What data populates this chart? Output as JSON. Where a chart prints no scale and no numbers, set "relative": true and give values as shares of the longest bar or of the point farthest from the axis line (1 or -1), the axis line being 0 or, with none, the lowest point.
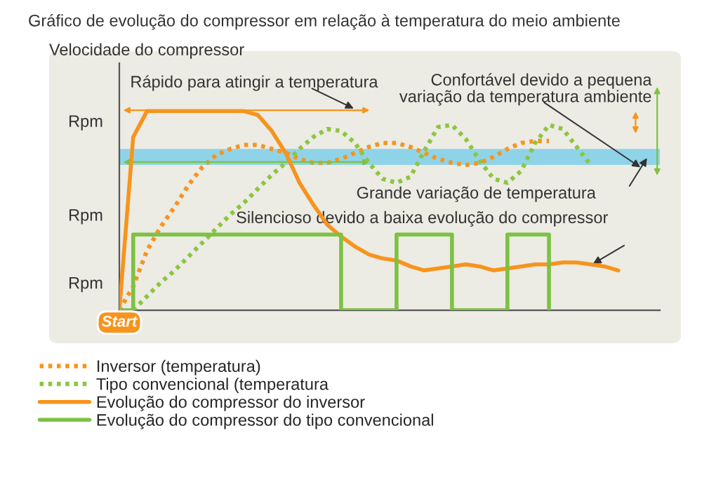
{
  "chart_data": {
    "type": "line",
    "relative": true,
    "title": "Gráfico de evolução do compressor em relação à temperatura do meio ambiente",
    "categories": [
      null,
      null,
      null,
      null,
      null,
      null,
      null,
      null,
      null,
      null,
      null,
      null,
      null,
      null,
      null,
      null,
      null,
      null,
      null,
      null,
      null,
      null,
      null,
      null,
      null,
      null,
      null,
      null,
      null,
      null,
      null,
      null,
      null,
      null,
      null,
      null,
      null,
      null,
      null,
      null
    ],
    "series": [
      {
        "name": "Inversor (temperatura)",
        "color": "#f7941d",
        "line_style": "dotted",
        "values": [
          0,
          0.12,
          0.3,
          0.42,
          0.52,
          0.63,
          0.72,
          0.78,
          0.81,
          0.83,
          0.83,
          0.81,
          0.79,
          0.76,
          0.74,
          0.74,
          0.76,
          0.79,
          0.82,
          0.84,
          0.84,
          0.82,
          0.79,
          0.76,
          0.74,
          0.73,
          0.74,
          0.77,
          0.81,
          0.84,
          0.85,
          0.85,
          null,
          null,
          null,
          null,
          null,
          null,
          null,
          null
        ]
      },
      {
        "name": "Tipo convencional (temperatura",
        "color": "#8cc63f",
        "line_style": "dotted",
        "values": [
          null,
          0,
          0.07,
          0.14,
          0.2,
          0.27,
          0.34,
          0.41,
          0.48,
          0.54,
          0.61,
          0.68,
          0.74,
          0.81,
          0.87,
          0.91,
          0.9,
          0.84,
          0.74,
          0.66,
          0.64,
          0.67,
          0.8,
          0.92,
          0.93,
          0.86,
          0.75,
          0.66,
          0.64,
          0.7,
          0.84,
          0.93,
          0.91,
          0.82,
          0.73,
          null,
          null,
          null,
          null,
          null
        ]
      },
      {
        "name": "Evolução do compressor do inversor",
        "color": "#f7941d",
        "line_style": "solid",
        "values": [
          0,
          0.87,
          1.0,
          1.0,
          1.0,
          1.0,
          1.0,
          1.0,
          1.0,
          1.0,
          0.98,
          0.9,
          0.79,
          0.64,
          0.53,
          0.43,
          0.37,
          0.32,
          0.28,
          0.26,
          0.25,
          0.22,
          0.2,
          0.21,
          0.22,
          0.23,
          0.22,
          0.2,
          0.21,
          0.22,
          0.23,
          0.23,
          0.24,
          0.24,
          0.23,
          0.22,
          0.2,
          null,
          null,
          null
        ]
      },
      {
        "name": "Evolução do compressor do tipo convencional",
        "color": "#7dc242",
        "type": "step",
        "line_style": "solid",
        "values": [
          0,
          0.38,
          0.38,
          0.38,
          0.38,
          0.38,
          0.38,
          0.38,
          0.38,
          0.38,
          0.38,
          0.38,
          0.38,
          0.38,
          0.38,
          0.38,
          0,
          0,
          0,
          0,
          0.38,
          0.38,
          0.38,
          0.38,
          0,
          0,
          0,
          0,
          0.38,
          0.38,
          0.38,
          0,
          null,
          null,
          null,
          null,
          null,
          null,
          null,
          null
        ]
      }
    ],
    "bands": [
      {
        "axis": "y",
        "from": 0.73,
        "to": 0.81,
        "color": "#8fd3e8"
      }
    ],
    "legend": "bottom left",
    "annotations": [
      "Velocidade do compressor",
      "Rpm",
      "Rpm",
      "Rpm",
      "Start",
      "Rápido para atingir a temperatura",
      "Confortável devido a pequena\nvariação da temperatura ambiente",
      "Grande variação de temperatura",
      "Silencioso devido a baixa evolução do compressor"
    ]
  }
}
